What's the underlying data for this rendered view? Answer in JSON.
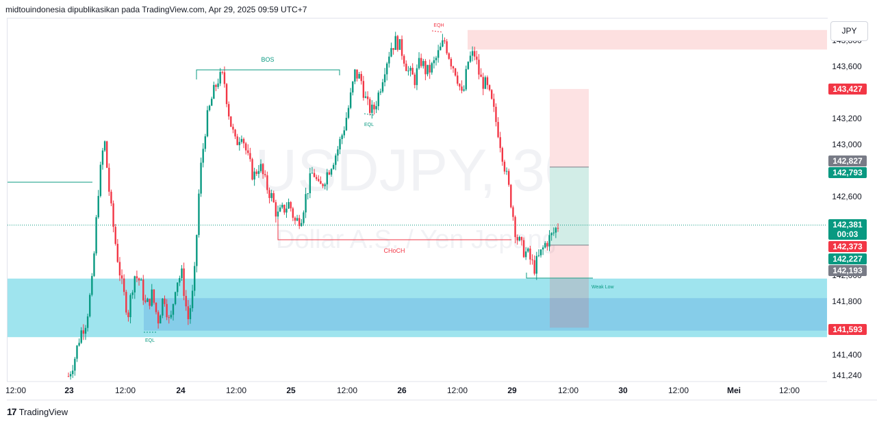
{
  "header": {
    "publisher_line": "midtouindonesia dipublikasikan pada TradingView.com, Apr 29, 2025 09:59 UTC+7"
  },
  "toolbar": {
    "currency_label": "JPY"
  },
  "footer": {
    "brand": "TradingView",
    "logo": "17"
  },
  "watermark": {
    "symbol": "USDJPY, 30",
    "description": "Dollar A.S. / Yen Jepang"
  },
  "colors": {
    "up": "#089981",
    "down": "#f23645",
    "demand_outer": "#9fe4ee",
    "demand_inner": "#86cde9",
    "supply": "#fde0e0",
    "tp_zone": "#d2ede7",
    "sl_zone": "#fde2e3",
    "structure": "#089981",
    "choch": "#f23645"
  },
  "chart_data": {
    "type": "candlestick",
    "symbol": "USDJPY",
    "timeframe": "30",
    "price_axis": {
      "ticks": [
        "143,600",
        "143,200",
        "143,000",
        "142,600",
        "141,800",
        "141,400",
        "141,240"
      ],
      "partially_hidden_ticks": [
        "143,800",
        "142,400",
        "142,000"
      ]
    },
    "time_axis": {
      "ticks": [
        "12:00",
        "23",
        "12:00",
        "24",
        "12:00",
        "25",
        "12:00",
        "26",
        "12:00",
        "29",
        "12:00",
        "30",
        "12:00",
        "Mei",
        "12:00"
      ]
    },
    "price_tags": [
      {
        "text": "143,427",
        "color": "#f23645"
      },
      {
        "text": "142,827",
        "color": "#787b86"
      },
      {
        "text": "142,793",
        "color": "#089981"
      },
      {
        "text": "142,381",
        "sub": "00:03",
        "color": "#089981"
      },
      {
        "text": "142,373",
        "color": "#f23645"
      },
      {
        "text": "142,227",
        "color": "#089981"
      },
      {
        "text": "142,193",
        "color": "#787b86"
      },
      {
        "text": "141,593",
        "color": "#f23645"
      }
    ],
    "annotations": [
      {
        "text": "BOS",
        "level": 143.58,
        "color": "#089981"
      },
      {
        "text": "CHoCH",
        "level": 142.36,
        "color": "#f23645"
      },
      {
        "text": "EQH",
        "level": 143.88,
        "color": "#f23645"
      },
      {
        "text": "EQL",
        "level": 143.22,
        "color": "#089981"
      },
      {
        "text": "EQL",
        "level": 141.57,
        "color": "#089981"
      },
      {
        "text": "Weak Low",
        "level": 142.01,
        "color": "#089981"
      }
    ],
    "zones": {
      "supply": [
        143.73,
        143.88
      ],
      "demand_outer": [
        141.52,
        141.97
      ],
      "demand_inner": [
        141.57,
        141.82
      ]
    },
    "position": {
      "entry": 142.227,
      "target": 142.827,
      "target2": 142.793,
      "stop_top": 143.427,
      "stop_bottom": 141.593
    },
    "path": [
      141.22,
      141.35,
      141.55,
      141.65,
      141.95,
      142.65,
      143.05,
      142.55,
      142.2,
      141.9,
      141.7,
      142.0,
      141.95,
      141.75,
      141.85,
      141.65,
      141.85,
      141.6,
      141.95,
      142.0,
      141.65,
      141.9,
      142.75,
      143.15,
      143.35,
      143.5,
      143.52,
      143.2,
      143.0,
      143.1,
      142.9,
      142.75,
      142.85,
      142.7,
      142.6,
      142.45,
      142.5,
      142.55,
      142.4,
      142.45,
      142.65,
      142.8,
      142.65,
      142.75,
      142.85,
      142.95,
      143.1,
      143.3,
      143.55,
      143.5,
      143.3,
      143.25,
      143.4,
      143.6,
      143.75,
      143.8,
      143.7,
      143.55,
      143.5,
      143.65,
      143.55,
      143.6,
      143.7,
      143.8,
      143.65,
      143.55,
      143.35,
      143.65,
      143.7,
      143.5,
      143.45,
      143.3,
      143.1,
      142.85,
      142.6,
      142.3,
      142.2,
      142.15,
      142.05,
      142.15,
      142.25,
      142.3,
      142.38
    ]
  }
}
